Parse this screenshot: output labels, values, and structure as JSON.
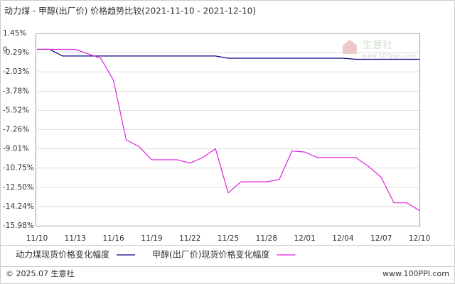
{
  "chart_data": {
    "type": "line",
    "title": "动力煤 - 甲醇(出厂价) 价格趋势比较(2021-11-10 - 2021-12-10)",
    "zero_label": "0",
    "watermark": "生意社",
    "watermark_url": "www.100ppi.com",
    "footer_left": "© 2025.07 生意社",
    "footer_right": "www.100PPI.com",
    "categories": [
      "11/10",
      null,
      null,
      "11/13",
      null,
      null,
      "11/16",
      null,
      null,
      "11/19",
      null,
      null,
      "11/22",
      null,
      null,
      "11/25",
      null,
      null,
      "11/28",
      null,
      null,
      "12/01",
      null,
      null,
      "12/04",
      null,
      null,
      "12/07",
      null,
      null,
      "12/10"
    ],
    "ylim": [
      -15.98,
      1.45
    ],
    "yticks": [
      {
        "value": 1.45,
        "label": "1.45%"
      },
      {
        "value": -0.29,
        "label": "-0.29%"
      },
      {
        "value": -2.03,
        "label": "-2.03%"
      },
      {
        "value": -3.78,
        "label": "-3.78%"
      },
      {
        "value": -5.52,
        "label": "-5.52%"
      },
      {
        "value": -7.26,
        "label": "-7.26%"
      },
      {
        "value": -9.01,
        "label": "-9.01%"
      },
      {
        "value": -10.75,
        "label": "-10.75%"
      },
      {
        "value": -12.5,
        "label": "-12.50%"
      },
      {
        "value": -14.24,
        "label": "-14.24%"
      },
      {
        "value": -15.98,
        "label": "-15.98%"
      }
    ],
    "grid": true,
    "series": [
      {
        "name": "动力煤现货价格变化幅度",
        "color": "#000080",
        "values": [
          0,
          0,
          -0.6,
          -0.6,
          -0.6,
          -0.6,
          -0.6,
          -0.6,
          -0.6,
          -0.6,
          -0.6,
          -0.6,
          -0.6,
          -0.6,
          -0.6,
          -0.8,
          -0.8,
          -0.8,
          -0.8,
          -0.8,
          -0.8,
          -0.8,
          -0.8,
          -0.8,
          -0.8,
          -0.9,
          -0.9,
          -0.9,
          -0.9,
          -0.9,
          -0.9
        ]
      },
      {
        "name": "甲醇(出厂价)现货价格变化幅度",
        "color": "#e020e0",
        "values": [
          0,
          0,
          0,
          0,
          -0.4,
          -0.8,
          -2.8,
          -8.2,
          -8.8,
          -10.0,
          -10.0,
          -10.0,
          -10.3,
          -9.8,
          -9.0,
          -13.0,
          -12.0,
          -12.0,
          -12.0,
          -11.8,
          -9.2,
          -9.3,
          -9.8,
          -9.8,
          -9.8,
          -9.8,
          -10.6,
          -11.6,
          -13.9,
          -13.9,
          -14.6
        ]
      }
    ]
  }
}
